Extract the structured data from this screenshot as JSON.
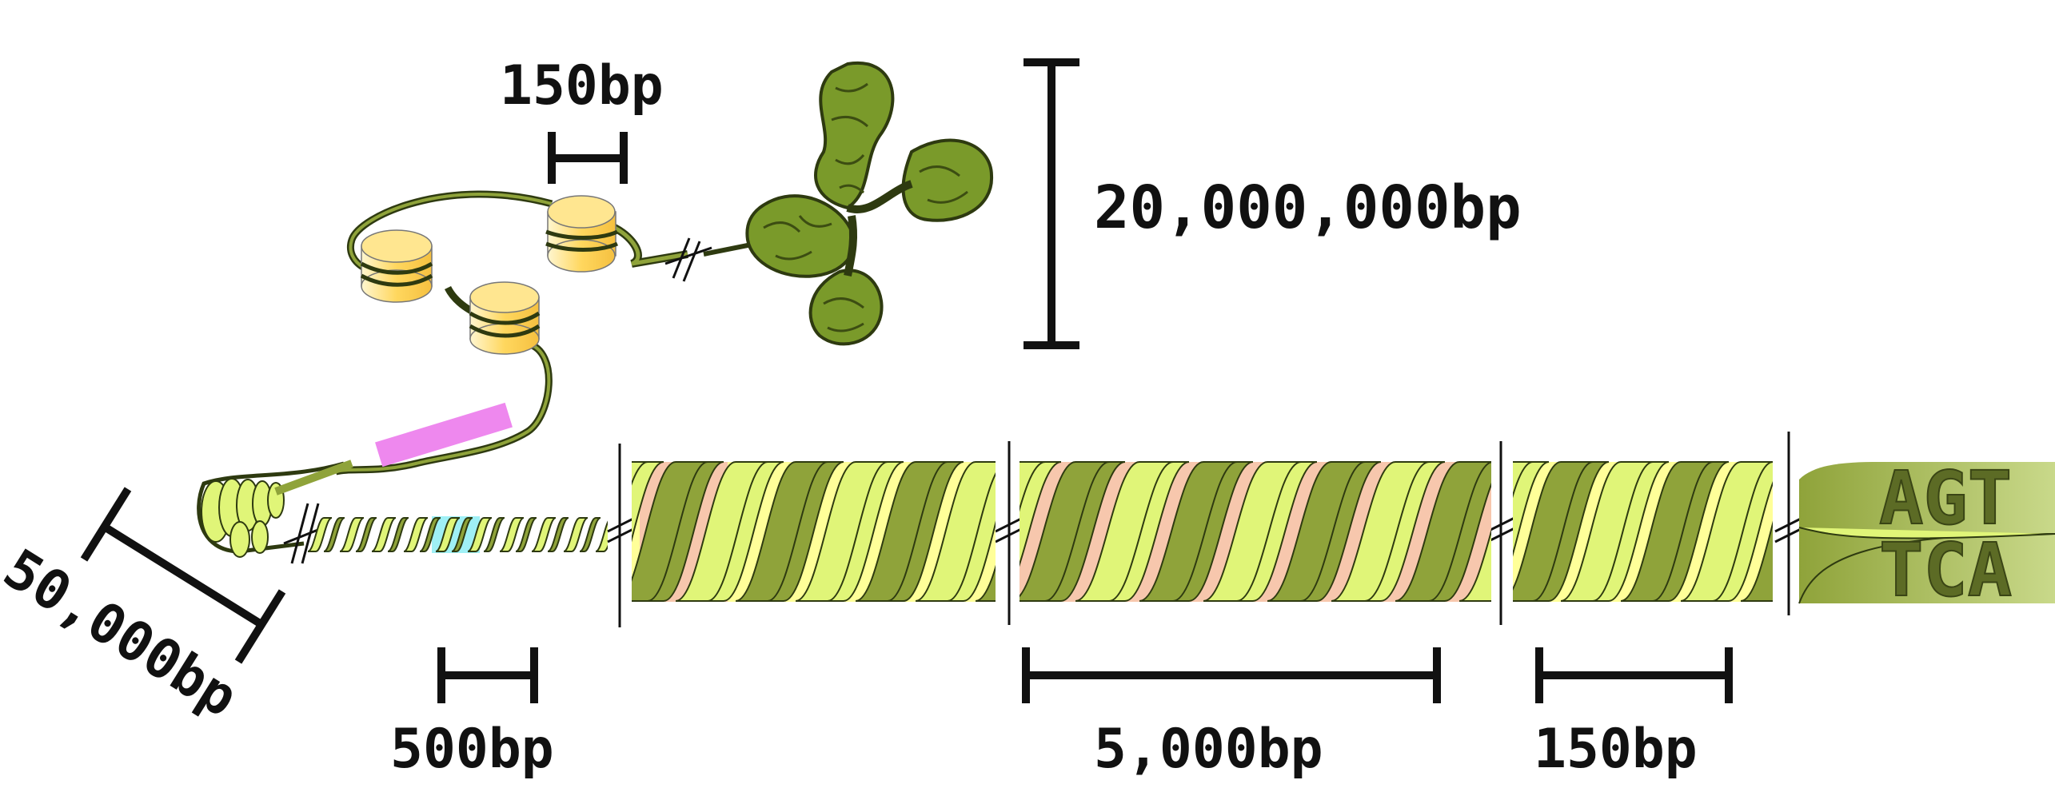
{
  "labels": {
    "top_150bp": "150bp",
    "chromosome_20M": "20,000,000bp",
    "diag_50k": "50,000bp",
    "bottom_500bp": "500bp",
    "bottom_5000bp": "5,000bp",
    "bottom_150bp": "150bp"
  },
  "sequence": {
    "top_strand": "AGT",
    "bottom_strand": "TCA"
  },
  "colors": {
    "dna_dark": "#8fa33a",
    "dna_light": "#e0f578",
    "dna_outline": "#2e3a10",
    "nucleosome": "#ffd75e",
    "enhancer_band": "#ee88ee",
    "bg_yellow": "#ffff99",
    "bg_salmon": "#f7c7ad",
    "bg_cyan": "#9ff0f5",
    "chromosome": "#7a9a2a"
  }
}
